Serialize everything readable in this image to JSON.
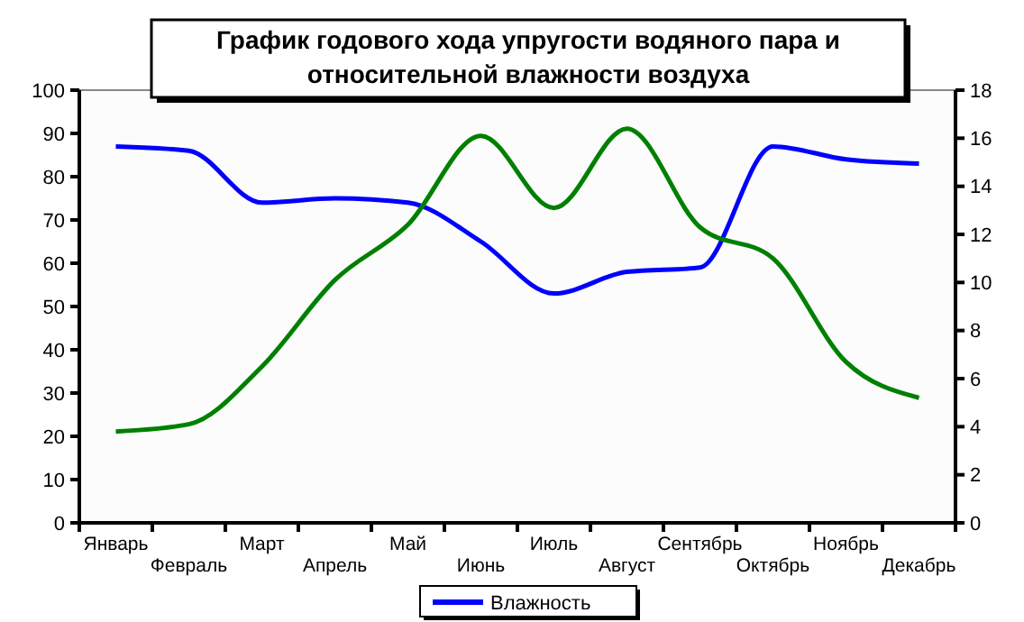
{
  "chart_data": {
    "type": "line",
    "title": "График годового хода упругости водяного пара и относительной влажности воздуха",
    "categories": [
      "Январь",
      "Февраль",
      "Март",
      "Апрель",
      "Май",
      "Июнь",
      "Июль",
      "Август",
      "Сентябрь",
      "Октябрь",
      "Ноябрь",
      "Декабрь"
    ],
    "series": [
      {
        "name": "Влажность",
        "color": "#0000ff",
        "values": [
          87,
          86,
          74,
          75,
          74,
          65,
          53,
          58,
          59,
          87,
          84,
          83
        ]
      },
      {
        "color": "#008000",
        "axis": "y2",
        "values": [
          3.8,
          4.1,
          6.5,
          10.1,
          12.4,
          16.1,
          13.1,
          16.4,
          12.3,
          11,
          6.7,
          5.2
        ]
      }
    ],
    "ylim": [
      0,
      100
    ],
    "yticks": [
      0,
      10,
      20,
      30,
      40,
      50,
      60,
      70,
      80,
      90,
      100
    ],
    "y2lim": [
      0,
      18
    ],
    "y2ticks": [
      0,
      2,
      4,
      6,
      8,
      10,
      12,
      14,
      16,
      18
    ],
    "grid": false,
    "legend": "bottom",
    "marker": "none",
    "line_style": "solid"
  }
}
